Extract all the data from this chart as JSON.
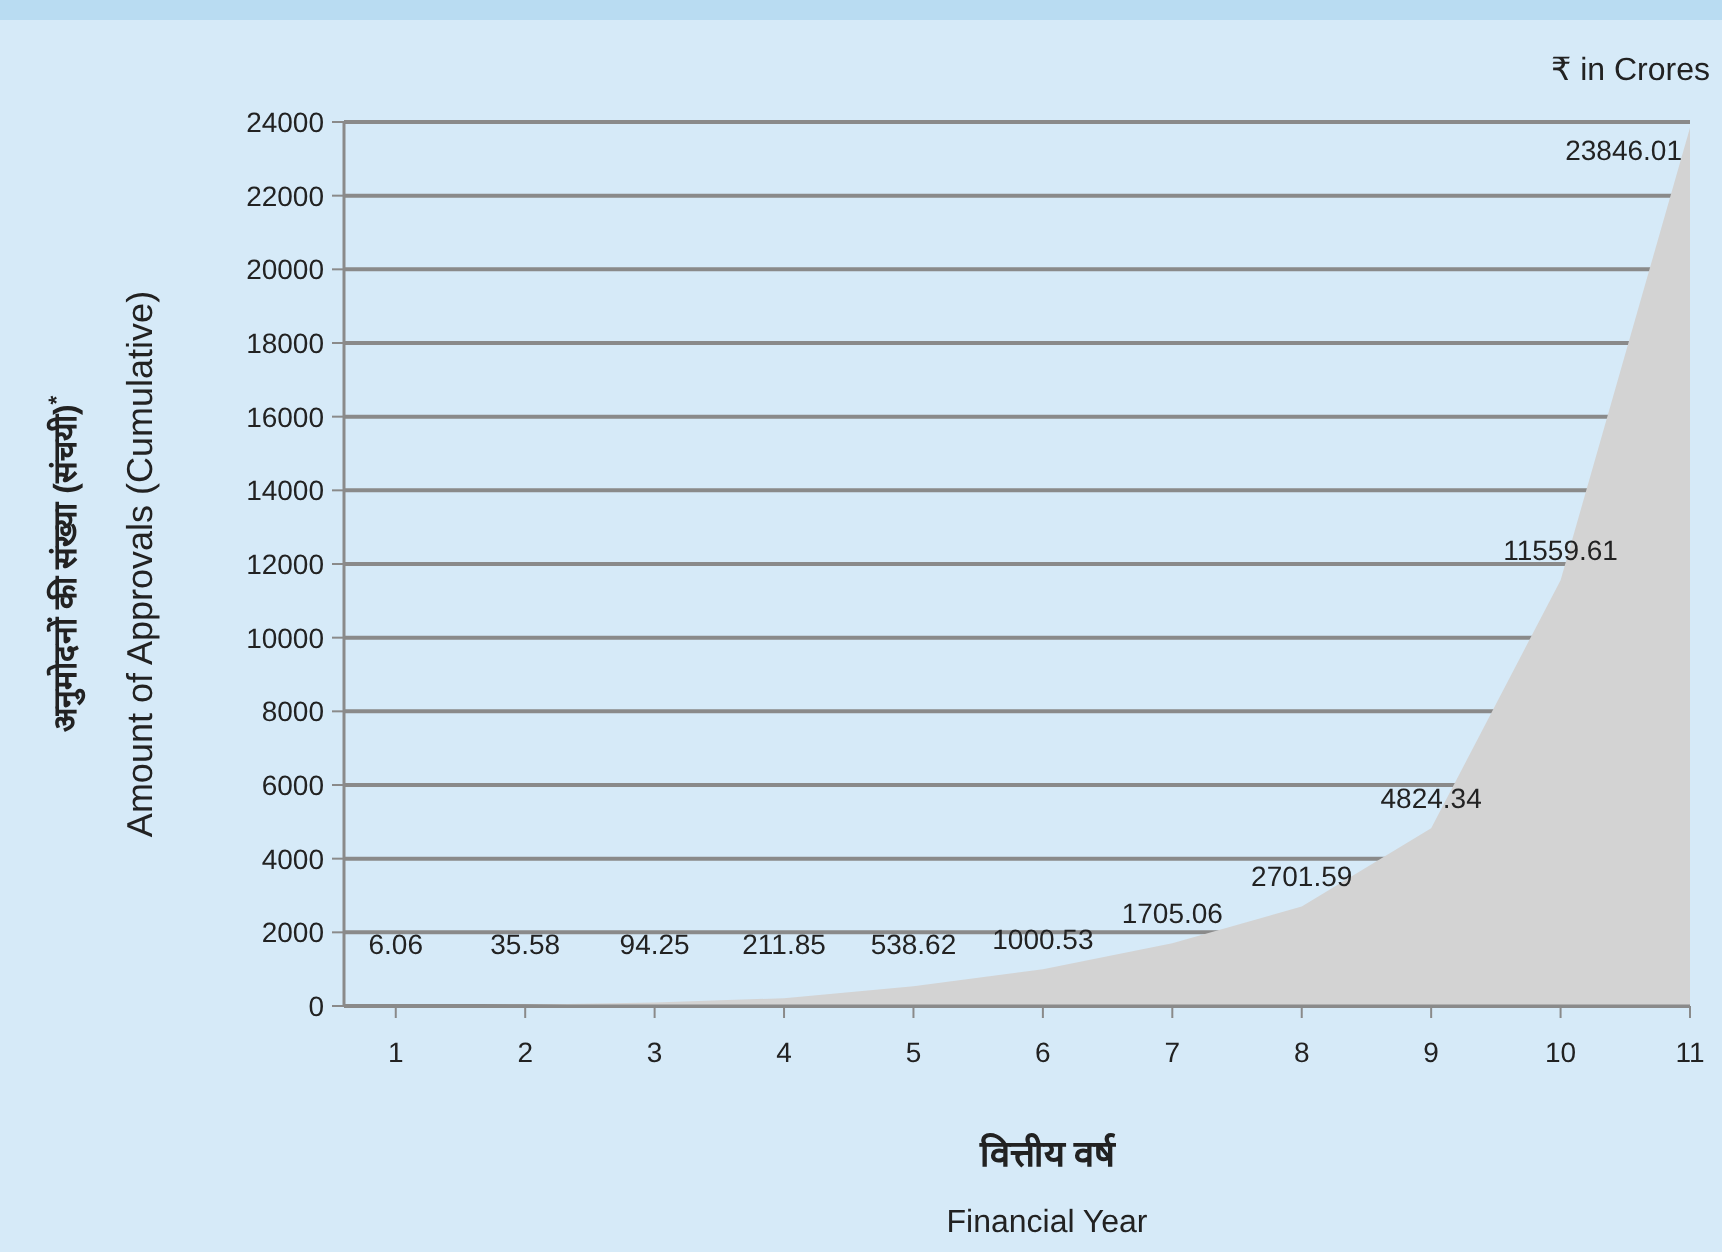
{
  "chart_data": {
    "type": "area",
    "xlabel": "वित्तीय वर्ष\nFinancial Year",
    "ylabel": "अनुमोदनों की संख्या (संचयी)$^{*}$\nAmount of Approvals (Cumulative)",
    "annotations": [
      "₹ in Crores"
    ],
    "x": [
      1,
      2,
      3,
      4,
      5,
      6,
      7,
      8,
      9,
      10,
      11
    ],
    "values": [
      6.06,
      35.58,
      94.25,
      211.85,
      538.62,
      1000.53,
      1705.06,
      2701.59,
      4824.34,
      11559.61,
      23846.01
    ],
    "color": "#d3d3d3",
    "data_labels": true,
    "grid": "y",
    "xlim": [
      0.6,
      11
    ],
    "xticks": [
      1,
      2,
      3,
      4,
      5,
      6,
      7,
      8,
      9,
      10,
      11
    ],
    "ylim": [
      0,
      24000
    ],
    "yticks": [
      0,
      2000,
      4000,
      6000,
      8000,
      10000,
      12000,
      14000,
      16000,
      18000,
      20000,
      22000,
      24000
    ]
  }
}
